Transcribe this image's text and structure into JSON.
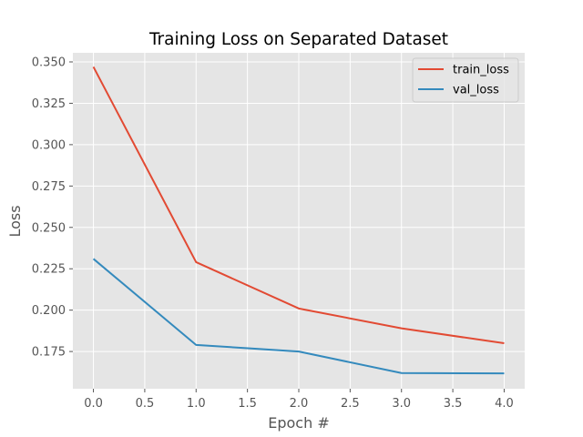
{
  "chart_data": {
    "type": "line",
    "title": "Training Loss on Separated Dataset",
    "xlabel": "Epoch #",
    "ylabel": "Loss",
    "x": [
      0,
      1,
      2,
      3,
      4
    ],
    "xlim": [
      -0.2,
      4.2
    ],
    "ylim": [
      0.1525,
      0.3555
    ],
    "xticks": [
      0.0,
      0.5,
      1.0,
      1.5,
      2.0,
      2.5,
      3.0,
      3.5,
      4.0
    ],
    "xtick_labels": [
      "0.0",
      "0.5",
      "1.0",
      "1.5",
      "2.0",
      "2.5",
      "3.0",
      "3.5",
      "4.0"
    ],
    "yticks": [
      0.175,
      0.2,
      0.225,
      0.25,
      0.275,
      0.3,
      0.325,
      0.35
    ],
    "ytick_labels": [
      "0.175",
      "0.200",
      "0.225",
      "0.250",
      "0.275",
      "0.300",
      "0.325",
      "0.350"
    ],
    "grid": true,
    "legend_position": "top-right",
    "series": [
      {
        "name": "train_loss",
        "color": "#E24A33",
        "values": [
          0.347,
          0.229,
          0.201,
          0.189,
          0.18
        ]
      },
      {
        "name": "val_loss",
        "color": "#348ABD",
        "values": [
          0.231,
          0.179,
          0.175,
          0.162,
          0.1618
        ]
      }
    ],
    "style": {
      "background": "#E5E5E5",
      "grid_color": "#FFFFFF"
    }
  }
}
